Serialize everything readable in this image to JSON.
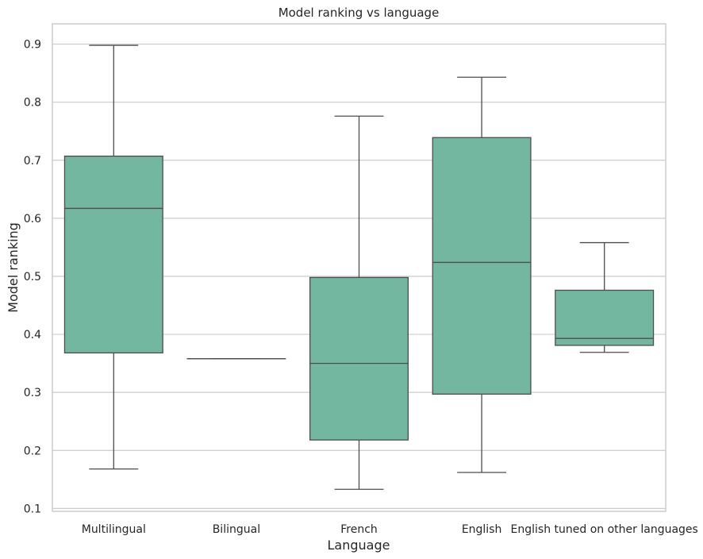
{
  "chart_data": {
    "type": "box",
    "title": "Model ranking vs language",
    "xlabel": "Language",
    "ylabel": "Model ranking",
    "ylim": [
      0.095,
      0.935
    ],
    "yticks": [
      0.1,
      0.2,
      0.3,
      0.4,
      0.5,
      0.6,
      0.7,
      0.8,
      0.9
    ],
    "grid": "horizontal",
    "box_color": "#73b7a0",
    "line_color": "#4d4d4d",
    "grid_color": "#cccccc",
    "categories": [
      "Multilingual",
      "Bilingual",
      "French",
      "English",
      "English tuned on other languages"
    ],
    "boxes": [
      {
        "min": 0.168,
        "q1": 0.368,
        "median": 0.617,
        "q3": 0.707,
        "max": 0.898
      },
      {
        "min": 0.358,
        "q1": 0.358,
        "median": 0.358,
        "q3": 0.358,
        "max": 0.358
      },
      {
        "min": 0.133,
        "q1": 0.218,
        "median": 0.35,
        "q3": 0.498,
        "max": 0.776
      },
      {
        "min": 0.162,
        "q1": 0.297,
        "median": 0.524,
        "q3": 0.739,
        "max": 0.843
      },
      {
        "min": 0.369,
        "q1": 0.381,
        "median": 0.393,
        "q3": 0.476,
        "max": 0.558
      }
    ]
  }
}
